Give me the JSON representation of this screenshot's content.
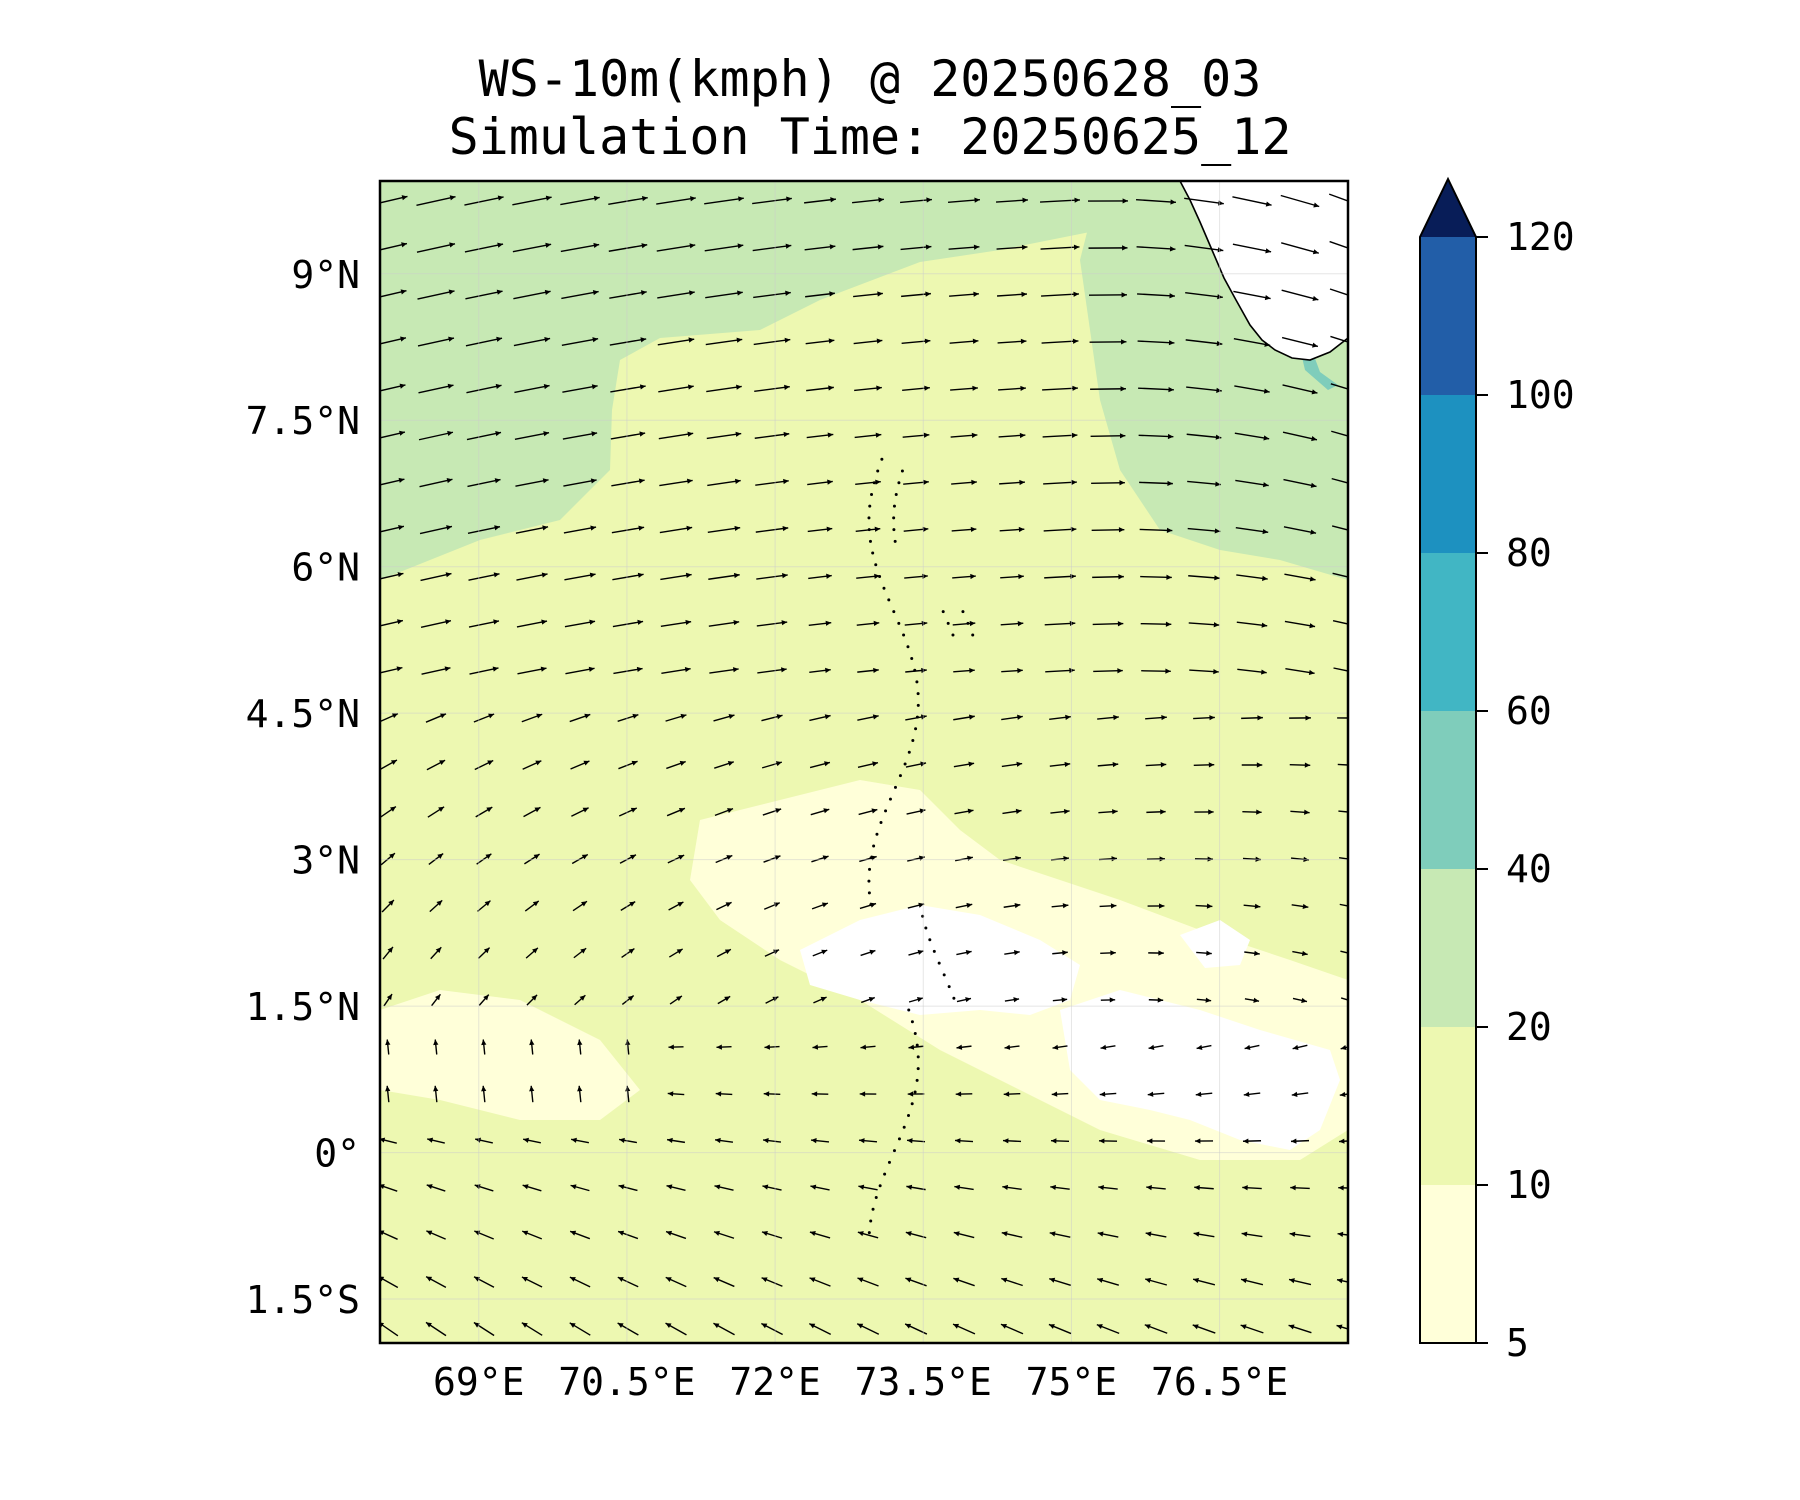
{
  "title": "WS-10m(kmph) @ 20250628_03",
  "subtitle": "Simulation Time: 20250625_12",
  "map": {
    "lon_ticks": [
      "69°E",
      "70.5°E",
      "72°E",
      "73.5°E",
      "75°E",
      "76.5°E"
    ],
    "lat_ticks": [
      "9°N",
      "7.5°N",
      "6°N",
      "4.5°N",
      "3°N",
      "1.5°N",
      "0°",
      "1.5°S"
    ],
    "extent": {
      "lon_min": 68.0,
      "lon_max": 77.8,
      "lat_min": -1.95,
      "lat_max": 9.95
    }
  },
  "colorbar": {
    "levels": [
      5,
      10,
      20,
      40,
      60,
      80,
      100,
      120
    ],
    "labels": [
      "5",
      "10",
      "20",
      "40",
      "60",
      "80",
      "100",
      "120"
    ],
    "colors": [
      "#ffffd9",
      "#edf8b1",
      "#c7e9b4",
      "#7fcdbb",
      "#41b6c4",
      "#1d91c0",
      "#225ea8",
      "#253494"
    ],
    "extend_color": "#081d58"
  },
  "chart_data": {
    "type": "heatmap",
    "title": "WS-10m(kmph) @ 20250628_03",
    "subtitle": "Simulation Time: 20250625_12",
    "variable": "10 m wind speed (kmph) with wind vectors",
    "levels": [
      5,
      10,
      20,
      40,
      60,
      80,
      100,
      120
    ],
    "regions": [
      {
        "area": "northwest (lat 6–10N, lon 68–70.5E)",
        "range": "20-40"
      },
      {
        "area": "northeast near coast (lat 5.5–10N, lon 75–77.8E)",
        "range": "20-40"
      },
      {
        "area": "offshore strip near 77.6E, 8.5–9.5N",
        "range": "40-60"
      },
      {
        "area": "central Arabian Sea (2–8N, 70.5–75E)",
        "range": "10-20"
      },
      {
        "area": "equatorial band (0.5–2.5N, 72.5–76.5E)",
        "range": "5-10"
      },
      {
        "area": "southern region (-2–0N)",
        "range": "10-20"
      }
    ]
  }
}
